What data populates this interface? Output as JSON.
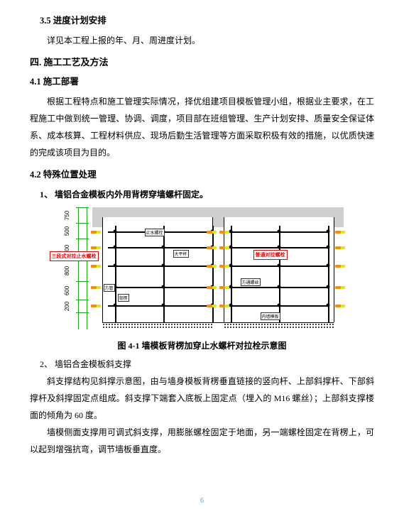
{
  "sections": {
    "s35_heading": "3.5  进度计划安排",
    "s35_p1": "详见本工程上报的年、月、周进度计划。",
    "s4_heading": "四.  施工工艺及方法",
    "s41_heading": "4.1  施工部署",
    "s41_p1": "根据工程特点和施工管理实际情况，择优组建项目模板管理小组，根据业主要求，在工程施工中做到统一管理、协调、调度，项目部在班组管理、生产计划安排、质量安全保证体系、成本核算、工程材料供应、现场后勤生活管理等方面采取积极有效的措施，以优质快速的完成该项目为目的。",
    "s42_heading": "4.2  特殊位置处理",
    "s42_item1": "1、 墙铝合金模板内外用背楞穿墙螺杆固定。",
    "s42_caption": "图 4-1  墙模板背楞加穿止水螺杆对拉栓示意图",
    "s42_item2": "2、 墙铝合金模板斜支撑",
    "s42_p2": "斜支撑结构见斜撑示意图，由与墙身模板背楞垂直链接的竖向杆、上部斜撑杆、下部斜撑杆及斜撑固定点组成。斜支撑下端套入底板上固定点（埋入的 M16 螺丝）；上部斜支撑楼面的倾角为 60 度。",
    "s42_p3": "墙模侧面支撑用可调式斜支撑，用膨胀螺栓固定于地面，另一端螺栓固定在背楞上，可以起到增强抗弯，调节墙板垂直度。"
  },
  "diagram": {
    "dims": [
      "750",
      "500",
      "900",
      "800",
      "600",
      "200"
    ],
    "dim_positions": [
      0,
      22,
      44,
      74,
      104,
      130,
      148
    ],
    "dim_label": "三段式对拉止水螺栓",
    "right_label": "普通对拉螺栓",
    "small_labels": [
      "止水螺栓",
      "方管",
      "背楞",
      "大平杯",
      "内墙模板",
      "方通螺丝"
    ],
    "colors": {
      "slab": "#cfcfcf",
      "dim": "#19a619",
      "bolt_orange": "#ff8c00",
      "bolt_yellow": "#e6e600",
      "red": "#d40000"
    },
    "bays": 2,
    "verticals_per_bay": 3,
    "bolt_rows": 5
  },
  "page_number": "6"
}
